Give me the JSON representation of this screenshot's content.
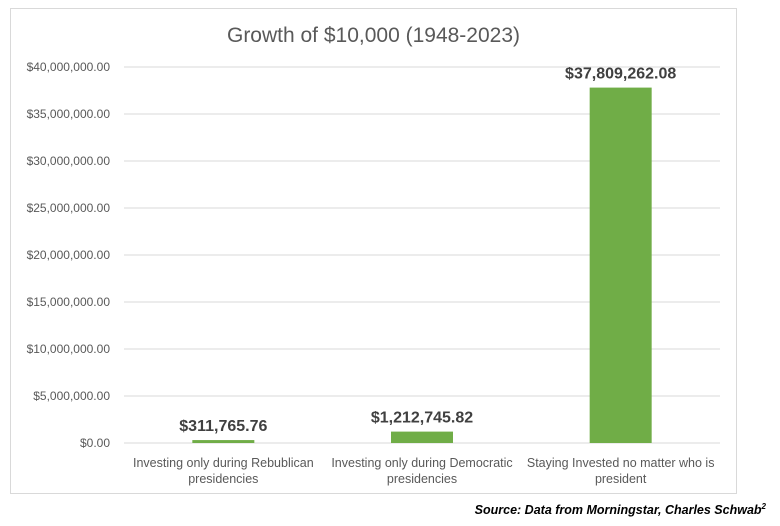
{
  "chart_data": {
    "type": "bar",
    "title": "Growth of $10,000 (1948-2023)",
    "categories": [
      [
        "Investing only during Rebublican",
        "presidencies"
      ],
      [
        "Investing only during Democratic",
        "presidencies"
      ],
      [
        "Staying Invested no matter who is",
        "president"
      ]
    ],
    "values": [
      311765.76,
      1212745.82,
      37809262.08
    ],
    "data_labels": [
      "$311,765.76",
      "$1,212,745.82",
      "$37,809,262.08"
    ],
    "y_ticks": [
      "$0.00",
      "$5,000,000.00",
      "$10,000,000.00",
      "$15,000,000.00",
      "$20,000,000.00",
      "$25,000,000.00",
      "$30,000,000.00",
      "$35,000,000.00",
      "$40,000,000.00"
    ],
    "ylim": [
      0,
      40000000
    ],
    "ytick_step": 5000000,
    "xlabel": "",
    "ylabel": "",
    "grid": true,
    "legend": "none",
    "bar_color": "#70ad47",
    "grid_color": "#d9d9d9"
  },
  "source": {
    "text": "Source: Data from Morningstar, Charles Schwab",
    "superscript": "2"
  }
}
